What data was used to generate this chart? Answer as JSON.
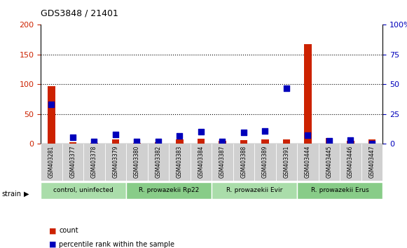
{
  "title": "GDS3848 / 21401",
  "samples": [
    "GSM403281",
    "GSM403377",
    "GSM403378",
    "GSM403379",
    "GSM403380",
    "GSM403382",
    "GSM403383",
    "GSM403384",
    "GSM403387",
    "GSM403388",
    "GSM403389",
    "GSM403391",
    "GSM403444",
    "GSM403445",
    "GSM403446",
    "GSM403447"
  ],
  "red_values": [
    97,
    3,
    2,
    7,
    2,
    3,
    8,
    9,
    5,
    6,
    7,
    7,
    168,
    10,
    5,
    7
  ],
  "blue_values_pct": [
    33,
    5.5,
    2,
    8,
    2,
    2,
    6.5,
    10,
    2,
    9.5,
    10.5,
    46.5,
    7,
    2.5,
    3,
    0
  ],
  "ylim_left": [
    0,
    200
  ],
  "ylim_right": [
    0,
    100
  ],
  "yticks_left": [
    0,
    50,
    100,
    150,
    200
  ],
  "yticks_right": [
    0,
    25,
    50,
    75,
    100
  ],
  "ytick_labels_left": [
    "0",
    "50",
    "100",
    "150",
    "200"
  ],
  "ytick_labels_right": [
    "0",
    "25",
    "50",
    "75",
    "100%"
  ],
  "groups": [
    {
      "label": "control, uninfected",
      "start": 0,
      "end": 4,
      "color": "#aaddaa"
    },
    {
      "label": "R. prowazekii Rp22",
      "start": 4,
      "end": 8,
      "color": "#88cc88"
    },
    {
      "label": "R. prowazekii Evir",
      "start": 8,
      "end": 12,
      "color": "#aaddaa"
    },
    {
      "label": "R. prowazekii Erus",
      "start": 12,
      "end": 16,
      "color": "#88cc88"
    }
  ],
  "bar_color": "#cc2200",
  "dot_color": "#0000bb",
  "tick_color_left": "#cc2200",
  "tick_color_right": "#0000bb",
  "bg_plot": "#ffffff",
  "bg_xticklabels": "#cccccc",
  "legend_count_color": "#cc2200",
  "legend_pct_color": "#0000bb"
}
